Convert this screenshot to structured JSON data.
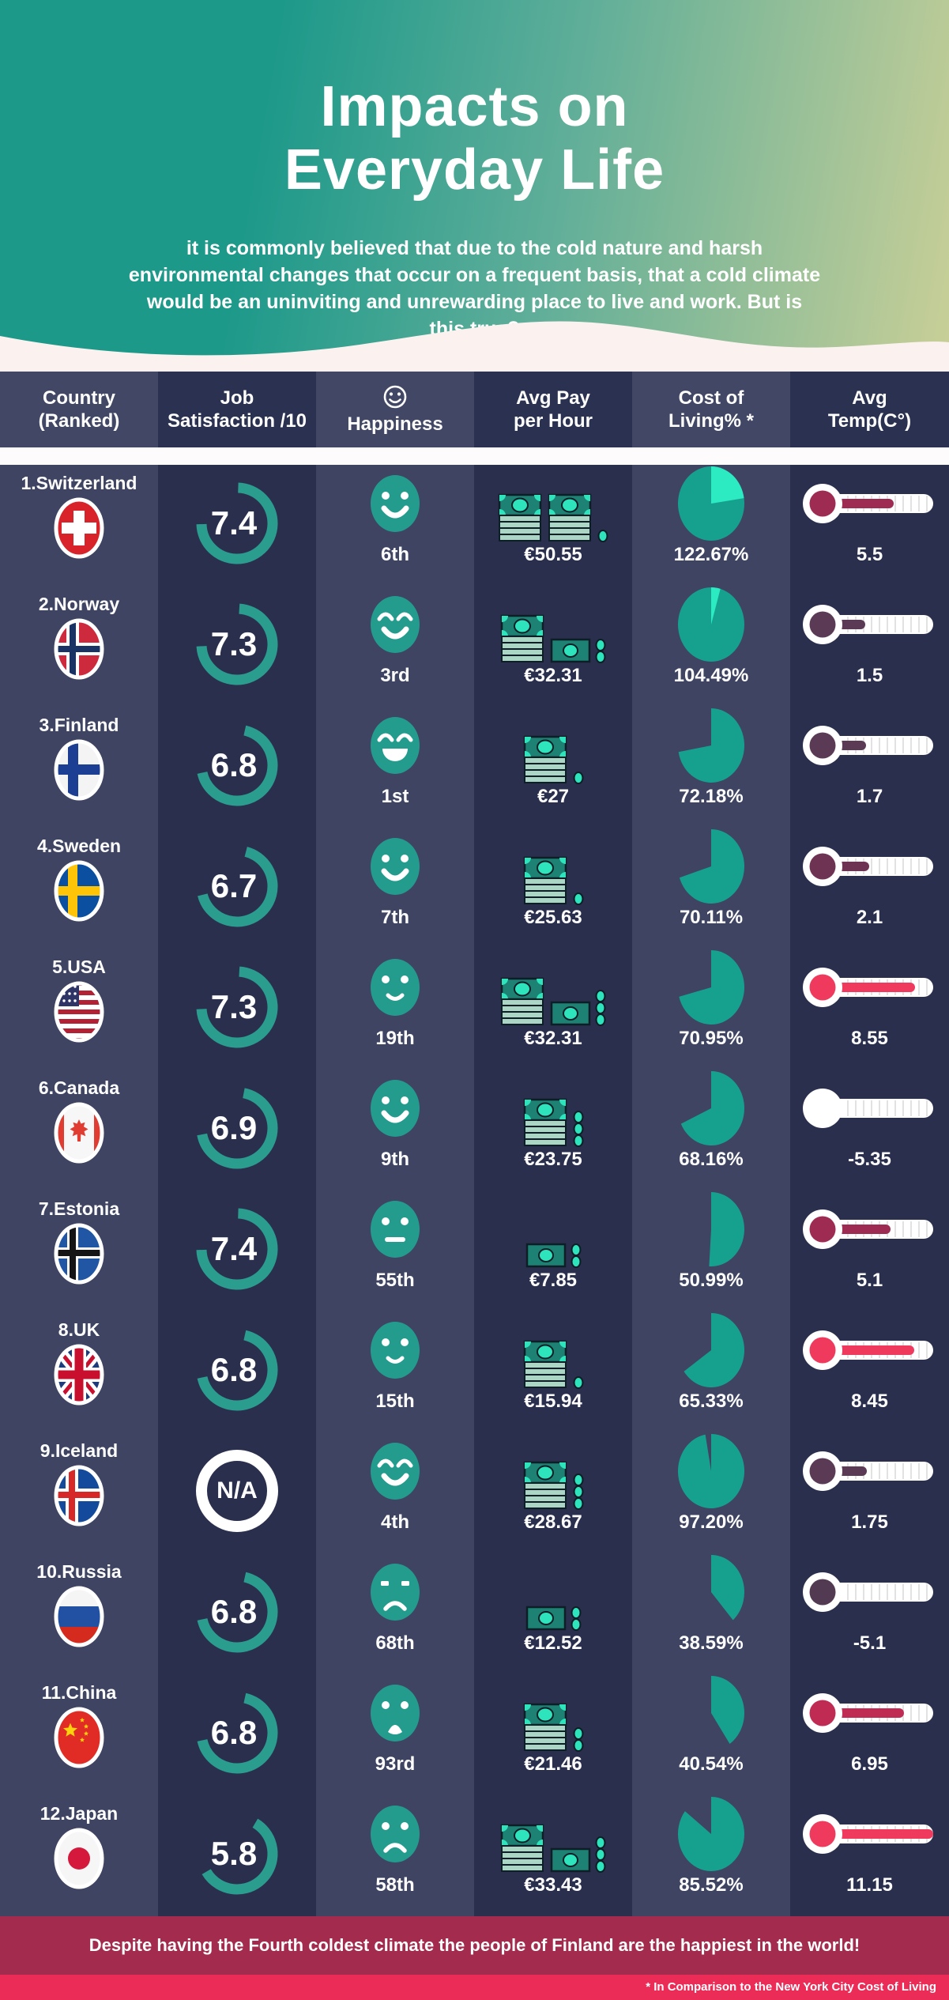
{
  "header": {
    "title_lines": [
      "Impacts on",
      "Everyday Life"
    ],
    "subtitle": "it is commonly believed that due to the cold nature and harsh environmental changes that occur on a frequent basis, that a cold climate would be an uninviting and unrewarding place to live and work. But is this true?"
  },
  "table": {
    "columns": [
      {
        "label": "Country\n(Ranked)"
      },
      {
        "label": "Job\nSatisfaction /10"
      },
      {
        "label": "Happiness",
        "icon": "smiley-outline-icon"
      },
      {
        "label": "Avg Pay\nper Hour"
      },
      {
        "label": "Cost of\nLiving% *"
      },
      {
        "label": "Avg\nTemp(C°)"
      }
    ]
  },
  "rows": [
    {
      "country": "1.Switzerland",
      "flag": "switzerland",
      "job_satisfaction": "7.4",
      "happiness_rank": "6th",
      "face": {
        "eyes": "dots",
        "mouth": "smile"
      },
      "avg_pay": "€50.55",
      "money": [
        "stack",
        "stack",
        "coin"
      ],
      "cost_of_living": "122.67%",
      "avg_temp": "5.5",
      "temp_color": "#9e2b52"
    },
    {
      "country": "2.Norway",
      "flag": "norway",
      "job_satisfaction": "7.3",
      "happiness_rank": "3rd",
      "face": {
        "eyes": "arcs",
        "mouth": "smile"
      },
      "avg_pay": "€32.31",
      "money": [
        "stack",
        "bill",
        "coins2"
      ],
      "cost_of_living": "104.49%",
      "avg_temp": "1.5",
      "temp_color": "#5a3a55"
    },
    {
      "country": "3.Finland",
      "flag": "finland",
      "job_satisfaction": "6.8",
      "happiness_rank": "1st",
      "face": {
        "eyes": "arcs",
        "mouth": "grin"
      },
      "avg_pay": "€27",
      "money": [
        "stack",
        "coin"
      ],
      "cost_of_living": "72.18%",
      "avg_temp": "1.7",
      "temp_color": "#5a3a55"
    },
    {
      "country": "4.Sweden",
      "flag": "sweden",
      "job_satisfaction": "6.7",
      "happiness_rank": "7th",
      "face": {
        "eyes": "dots",
        "mouth": "smile"
      },
      "avg_pay": "€25.63",
      "money": [
        "stack",
        "coin"
      ],
      "cost_of_living": "70.11%",
      "avg_temp": "2.1",
      "temp_color": "#6e3253"
    },
    {
      "country": "5.USA",
      "flag": "usa",
      "job_satisfaction": "7.3",
      "happiness_rank": "19th",
      "face": {
        "eyes": "dots",
        "mouth": "slight"
      },
      "avg_pay": "€32.31",
      "money": [
        "stack",
        "bill",
        "coins3"
      ],
      "cost_of_living": "70.95%",
      "avg_temp": "8.55",
      "temp_color": "#ef3a5e"
    },
    {
      "country": "6.Canada",
      "flag": "canada",
      "job_satisfaction": "6.9",
      "happiness_rank": "9th",
      "face": {
        "eyes": "dots",
        "mouth": "smile"
      },
      "avg_pay": "€23.75",
      "money": [
        "stack",
        "coins3"
      ],
      "cost_of_living": "68.16%",
      "avg_temp": "-5.35",
      "temp_color": "#ffffff"
    },
    {
      "country": "7.Estonia",
      "flag": "estonia",
      "job_satisfaction": "7.4",
      "happiness_rank": "55th",
      "face": {
        "eyes": "dots",
        "mouth": "flat"
      },
      "avg_pay": "€7.85",
      "money": [
        "bill",
        "coins2"
      ],
      "cost_of_living": "50.99%",
      "avg_temp": "5.1",
      "temp_color": "#9e2b52"
    },
    {
      "country": "8.UK",
      "flag": "uk",
      "job_satisfaction": "6.8",
      "happiness_rank": "15th",
      "face": {
        "eyes": "dots",
        "mouth": "slight"
      },
      "avg_pay": "€15.94",
      "money": [
        "stack",
        "coin"
      ],
      "cost_of_living": "65.33%",
      "avg_temp": "8.45",
      "temp_color": "#ef3a5e"
    },
    {
      "country": "9.Iceland",
      "flag": "iceland",
      "job_satisfaction": "N/A",
      "happiness_rank": "4th",
      "face": {
        "eyes": "arcs",
        "mouth": "smile"
      },
      "avg_pay": "€28.67",
      "money": [
        "stack",
        "coins3"
      ],
      "cost_of_living": "97.20%",
      "avg_temp": "1.75",
      "temp_color": "#5a3a55"
    },
    {
      "country": "10.Russia",
      "flag": "russia",
      "job_satisfaction": "6.8",
      "happiness_rank": "68th",
      "face": {
        "eyes": "bars",
        "mouth": "frown"
      },
      "avg_pay": "€12.52",
      "money": [
        "bill",
        "coins2"
      ],
      "cost_of_living": "38.59%",
      "avg_temp": "-5.1",
      "temp_color": "#523a52"
    },
    {
      "country": "11.China",
      "flag": "china",
      "job_satisfaction": "6.8",
      "happiness_rank": "93rd",
      "face": {
        "eyes": "dots",
        "mouth": "open"
      },
      "avg_pay": "€21.46",
      "money": [
        "stack",
        "coins2"
      ],
      "cost_of_living": "40.54%",
      "avg_temp": "6.95",
      "temp_color": "#c02b53"
    },
    {
      "country": "12.Japan",
      "flag": "japan",
      "job_satisfaction": "5.8",
      "happiness_rank": "58th",
      "face": {
        "eyes": "dots",
        "mouth": "frown"
      },
      "avg_pay": "€33.43",
      "money": [
        "stack",
        "bill",
        "coins3"
      ],
      "cost_of_living": "85.52%",
      "avg_temp": "11.15",
      "temp_color": "#ef3a5e"
    }
  ],
  "footer": {
    "message": "Despite having the Fourth coldest climate the people of Finland are the happiest in the world!",
    "footnote": "* In Comparison to the New York City Cost of Living"
  },
  "colors": {
    "accent_teal": "#2a9d8f",
    "pie_teal": "#16a18e",
    "pie_overflow_mint": "#2ceac1",
    "money_dark_teal": "#1d8173",
    "money_mint": "#2ee4bd",
    "column_light": "#3e4462",
    "column_dark": "#2a2f4d",
    "footer_dark_red": "#a32b4d",
    "footer_bright_red": "#ea2c57"
  },
  "chart_data": {
    "type": "table",
    "columns": [
      "Country (Ranked)",
      "Job Satisfaction /10",
      "Happiness World Rank",
      "Avg Pay per Hour (EUR)",
      "Cost of Living % (vs NYC)",
      "Avg Temp (C)"
    ],
    "rows": [
      [
        "1.Switzerland",
        7.4,
        "6th",
        50.55,
        122.67,
        5.5
      ],
      [
        "2.Norway",
        7.3,
        "3rd",
        32.31,
        104.49,
        1.5
      ],
      [
        "3.Finland",
        6.8,
        "1st",
        27,
        72.18,
        1.7
      ],
      [
        "4.Sweden",
        6.7,
        "7th",
        25.63,
        70.11,
        2.1
      ],
      [
        "5.USA",
        7.3,
        "19th",
        32.31,
        70.95,
        8.55
      ],
      [
        "6.Canada",
        6.9,
        "9th",
        23.75,
        68.16,
        -5.35
      ],
      [
        "7.Estonia",
        7.4,
        "55th",
        7.85,
        50.99,
        5.1
      ],
      [
        "8.UK",
        6.8,
        "15th",
        15.94,
        65.33,
        8.45
      ],
      [
        "9.Iceland",
        null,
        "4th",
        28.67,
        97.2,
        1.75
      ],
      [
        "10.Russia",
        6.8,
        "68th",
        12.52,
        38.59,
        -5.1
      ],
      [
        "11.China",
        6.8,
        "93rd",
        21.46,
        40.54,
        6.95
      ],
      [
        "12.Japan",
        5.8,
        "58th",
        33.43,
        85.52,
        11.15
      ]
    ]
  }
}
